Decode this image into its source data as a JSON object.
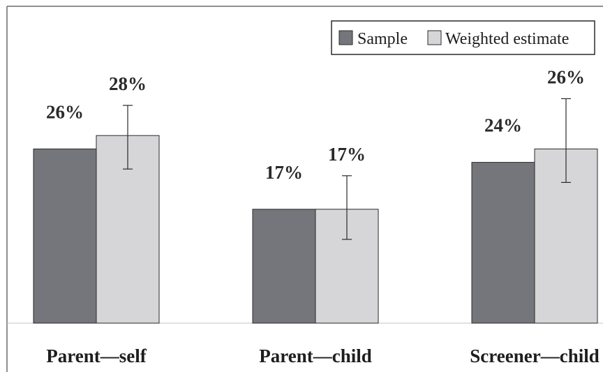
{
  "chart_data": {
    "type": "bar",
    "categories": [
      "Parent—self",
      "Parent—child",
      "Screener—child"
    ],
    "series": [
      {
        "name": "Sample",
        "color": "#75767b",
        "values": [
          26,
          17,
          24
        ],
        "labels": [
          "26%",
          "17%",
          "24%"
        ]
      },
      {
        "name": "Weighted estimate",
        "color": "#d6d6d8",
        "values": [
          28,
          17,
          26
        ],
        "labels": [
          "28%",
          "17%",
          "26%"
        ],
        "error_low": [
          23,
          12.5,
          21
        ],
        "error_high": [
          32.5,
          22,
          33.5
        ]
      }
    ],
    "ylim": [
      0,
      45
    ],
    "grid": false,
    "legend_position": "top-right"
  }
}
